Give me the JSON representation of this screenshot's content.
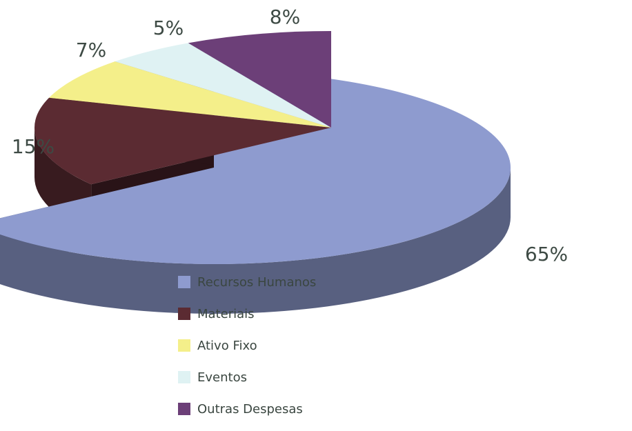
{
  "chart_data": {
    "type": "pie",
    "title": "",
    "slices": [
      {
        "label": "Recursos Humanos",
        "value": 65,
        "value_label": "65%",
        "color": "#8e9bcf",
        "exploded": true
      },
      {
        "label": "Materiais",
        "value": 15,
        "value_label": "15%",
        "color": "#5b2b32",
        "exploded": false
      },
      {
        "label": "Ativo Fixo",
        "value": 7,
        "value_label": "7%",
        "color": "#f4ef8a",
        "exploded": false
      },
      {
        "label": "Eventos",
        "value": 5,
        "value_label": "5%",
        "color": "#dff2f3",
        "exploded": false
      },
      {
        "label": "Outras Despesas",
        "value": 8,
        "value_label": "8%",
        "color": "#6c3f78",
        "exploded": false
      }
    ],
    "style": "3d-exploded",
    "legend_position": "bottom"
  }
}
